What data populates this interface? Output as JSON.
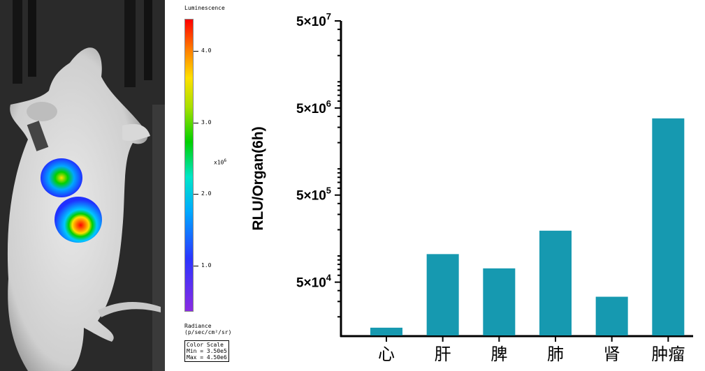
{
  "scale": {
    "title": "Luminescence",
    "ticks": [
      "4.0",
      "3.0",
      "2.0",
      "1.0"
    ],
    "multiplier": "x10",
    "multiplier_exp": "6",
    "radiance_label": "Radiance",
    "radiance_unit": "(p/sec/cm²/sr)",
    "color_scale_title": "Color Scale",
    "min": "Min = 3.50e5",
    "max": "Max = 4.50e6"
  },
  "chart_data": {
    "type": "bar",
    "ylabel": "RLU/Organ(6h)",
    "yscale": "log",
    "ylim": [
      12000,
      50000000
    ],
    "ytick_labels": [
      {
        "base": "5×10",
        "exp": "7",
        "value": 50000000
      },
      {
        "base": "5×10",
        "exp": "6",
        "value": 5000000
      },
      {
        "base": "5×10",
        "exp": "5",
        "value": 500000
      },
      {
        "base": "5×10",
        "exp": "4",
        "value": 50000
      }
    ],
    "categories": [
      "心",
      "肝",
      "脾",
      "肺",
      "肾",
      "肿瘤"
    ],
    "values": [
      15000,
      105000,
      72000,
      195000,
      34000,
      3800000
    ],
    "bar_color": "#1699b0"
  }
}
